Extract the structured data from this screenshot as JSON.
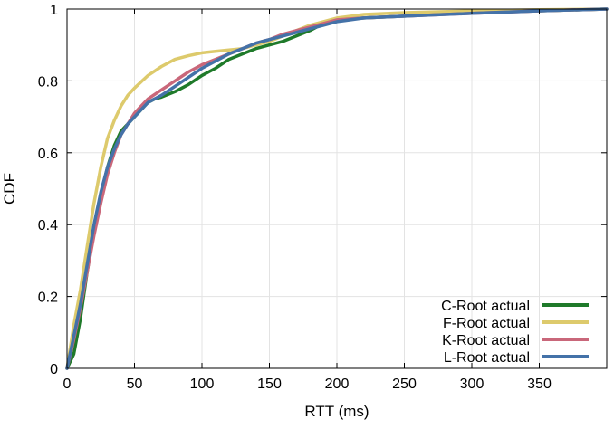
{
  "chart_data": {
    "type": "line",
    "title": "",
    "xlabel": "RTT (ms)",
    "ylabel": "CDF",
    "xlim": [
      0,
      400
    ],
    "ylim": [
      0,
      1
    ],
    "grid": true,
    "legend_position": "bottom-right",
    "x_ticks": [
      0,
      50,
      100,
      150,
      200,
      250,
      300,
      350
    ],
    "y_ticks": [
      0,
      0.2,
      0.4,
      0.6,
      0.8,
      1
    ],
    "x_tick_labels": [
      "0",
      "50",
      "100",
      "150",
      "200",
      "250",
      "300",
      "350"
    ],
    "y_tick_labels": [
      "0",
      "0.2",
      "0.4",
      "0.6",
      "0.8",
      "1"
    ],
    "series": [
      {
        "name": "C-Root actual",
        "color": "#1f7a2a",
        "x": [
          0,
          5,
          10,
          15,
          20,
          25,
          30,
          35,
          40,
          45,
          50,
          55,
          60,
          65,
          70,
          80,
          90,
          100,
          110,
          120,
          130,
          140,
          150,
          160,
          170,
          180,
          190,
          200,
          220,
          250,
          300,
          350,
          400
        ],
        "y": [
          0,
          0.04,
          0.14,
          0.27,
          0.38,
          0.48,
          0.56,
          0.62,
          0.66,
          0.68,
          0.7,
          0.72,
          0.74,
          0.75,
          0.755,
          0.77,
          0.79,
          0.815,
          0.835,
          0.86,
          0.875,
          0.89,
          0.9,
          0.91,
          0.925,
          0.94,
          0.96,
          0.97,
          0.975,
          0.98,
          0.99,
          0.995,
          1.0
        ]
      },
      {
        "name": "F-Root actual",
        "color": "#ddca6c",
        "x": [
          0,
          5,
          10,
          15,
          20,
          25,
          30,
          35,
          40,
          45,
          50,
          60,
          70,
          80,
          90,
          100,
          110,
          120,
          130,
          140,
          150,
          160,
          170,
          180,
          190,
          200,
          220,
          250,
          300,
          350,
          400
        ],
        "y": [
          0,
          0.12,
          0.22,
          0.34,
          0.46,
          0.56,
          0.64,
          0.69,
          0.73,
          0.76,
          0.78,
          0.815,
          0.84,
          0.86,
          0.87,
          0.878,
          0.882,
          0.886,
          0.89,
          0.9,
          0.91,
          0.925,
          0.94,
          0.955,
          0.965,
          0.975,
          0.985,
          0.99,
          0.995,
          0.998,
          1.0
        ]
      },
      {
        "name": "K-Root actual",
        "color": "#c9677a",
        "x": [
          0,
          5,
          10,
          15,
          20,
          25,
          30,
          35,
          40,
          45,
          50,
          55,
          60,
          70,
          80,
          90,
          100,
          110,
          120,
          130,
          140,
          150,
          160,
          170,
          180,
          190,
          200,
          220,
          250,
          300,
          350,
          400
        ],
        "y": [
          0,
          0.08,
          0.17,
          0.27,
          0.37,
          0.46,
          0.54,
          0.6,
          0.65,
          0.68,
          0.71,
          0.73,
          0.75,
          0.775,
          0.8,
          0.825,
          0.845,
          0.86,
          0.875,
          0.89,
          0.905,
          0.915,
          0.93,
          0.94,
          0.95,
          0.96,
          0.97,
          0.975,
          0.98,
          0.988,
          0.995,
          1.0
        ]
      },
      {
        "name": "L-Root actual",
        "color": "#4472a8",
        "x": [
          0,
          5,
          10,
          15,
          20,
          25,
          30,
          35,
          40,
          45,
          50,
          55,
          60,
          70,
          80,
          90,
          100,
          110,
          120,
          130,
          140,
          150,
          160,
          170,
          180,
          190,
          200,
          220,
          250,
          300,
          350,
          400
        ],
        "y": [
          0,
          0.09,
          0.18,
          0.29,
          0.4,
          0.49,
          0.56,
          0.61,
          0.65,
          0.68,
          0.7,
          0.72,
          0.74,
          0.76,
          0.785,
          0.81,
          0.835,
          0.855,
          0.875,
          0.89,
          0.905,
          0.915,
          0.925,
          0.935,
          0.945,
          0.955,
          0.965,
          0.975,
          0.98,
          0.988,
          0.995,
          1.0
        ]
      }
    ]
  }
}
